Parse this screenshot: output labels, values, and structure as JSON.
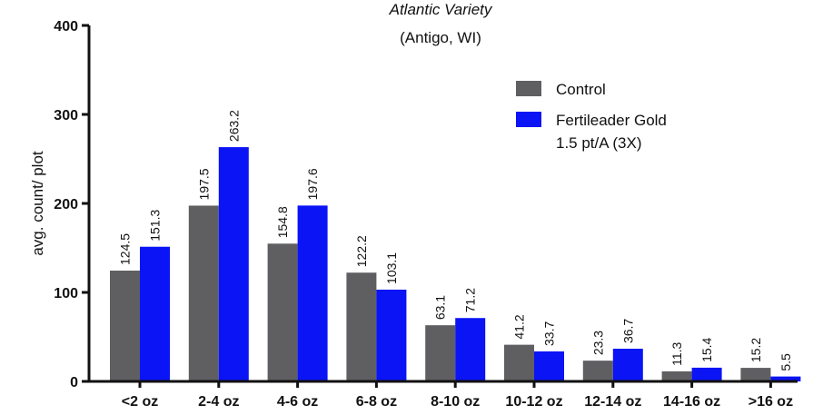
{
  "chart_data": {
    "type": "bar",
    "title": [
      "Atlantic Variety",
      "(Antigo, WI)"
    ],
    "xlabel": "",
    "ylabel": "avg. count/ plot",
    "ylim": [
      0,
      400
    ],
    "yticks": [
      0,
      100,
      200,
      300,
      400
    ],
    "categories": [
      "<2 oz",
      "2-4 oz",
      "4-6 oz",
      "6-8 oz",
      "8-10 oz",
      "10-12 oz",
      "12-14 oz",
      "14-16 oz",
      ">16 oz"
    ],
    "series": [
      {
        "name": "Control",
        "color": "#5f5f62",
        "values": [
          124.5,
          197.5,
          154.8,
          122.2,
          63.1,
          41.2,
          23.3,
          11.3,
          15.2
        ],
        "labels": [
          "124.5",
          "197.5",
          "154.8",
          "122.2",
          "63.1",
          "41.2",
          "23.3",
          "11.3",
          "15.2"
        ]
      },
      {
        "name": [
          "Fertileader Gold",
          "1.5 pt/A (3X)"
        ],
        "color": "#0a14f5",
        "values": [
          151.3,
          263.2,
          197.6,
          103.1,
          71.2,
          33.7,
          36.7,
          15.4,
          5.5
        ],
        "labels": [
          "151.3",
          "263.2",
          "197.6",
          "103.1",
          "71.2",
          "33.7",
          "36.7",
          "15.4",
          "5.5"
        ]
      }
    ],
    "grid": false,
    "legend_position": "top-right"
  }
}
